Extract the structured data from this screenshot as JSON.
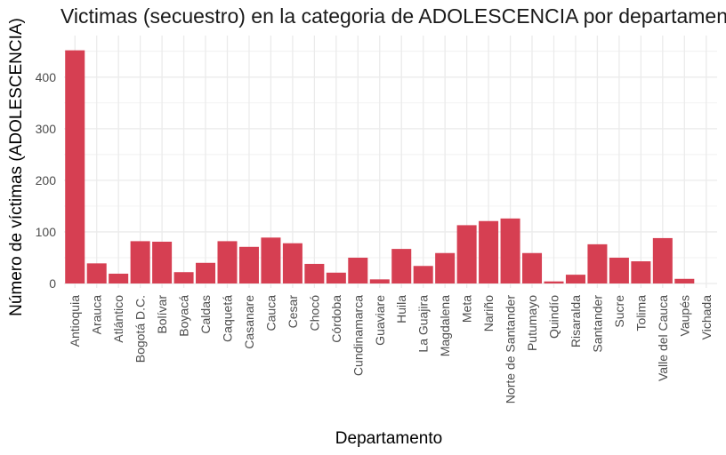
{
  "chart_data": {
    "type": "bar",
    "title": "Victimas (secuestro) en la categoria de ADOLESCENCIA por departamento",
    "xlabel": "Departamento",
    "ylabel": "Número de víctimas (ADOLESCENCIA)",
    "categories": [
      "Antioquia",
      "Arauca",
      "Atlántico",
      "Bogotá D.C.",
      "Bolívar",
      "Boyacá",
      "Caldas",
      "Caquetá",
      "Casanare",
      "Cauca",
      "Cesar",
      "Chocó",
      "Córdoba",
      "Cundinamarca",
      "Guaviare",
      "Huila",
      "La Guajira",
      "Magdalena",
      "Meta",
      "Nariño",
      "Norte de Santander",
      "Putumayo",
      "Quindío",
      "Risaralda",
      "Santander",
      "Sucre",
      "Tolima",
      "Valle del Cauca",
      "Vaupés",
      "Vichada"
    ],
    "values": [
      452,
      39,
      19,
      82,
      81,
      22,
      40,
      82,
      71,
      89,
      78,
      38,
      21,
      50,
      8,
      67,
      34,
      59,
      113,
      121,
      126,
      59,
      4,
      17,
      76,
      50,
      43,
      88,
      9,
      0
    ],
    "yticks": [
      0,
      100,
      200,
      300,
      400
    ],
    "ylim": [
      -8,
      470
    ],
    "grid": true,
    "bar_color": "#d63f52",
    "grid_color": "#ebebeb"
  }
}
